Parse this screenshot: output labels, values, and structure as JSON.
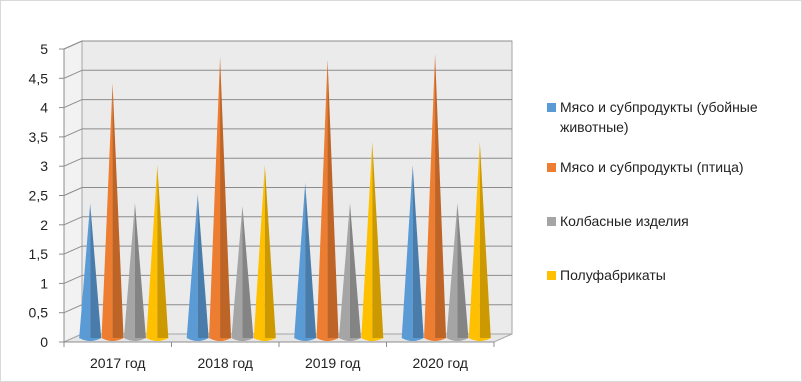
{
  "chart_data": {
    "type": "bar",
    "bar_shape": "cone",
    "categories": [
      "2017 год",
      "2018 год",
      "2019 год",
      "2020 год"
    ],
    "series": [
      {
        "name": "Мясо и субпродукты (убойные животные)",
        "values": [
          2.3,
          2.45,
          2.65,
          2.95
        ],
        "color": "#5b9bd5"
      },
      {
        "name": "Мясо и субпродукты (птица)",
        "values": [
          4.35,
          4.8,
          4.75,
          4.85
        ],
        "color": "#ed7d31"
      },
      {
        "name": "Колбасные изделия",
        "values": [
          2.3,
          2.25,
          2.3,
          2.3
        ],
        "color": "#a5a5a5"
      },
      {
        "name": "Полуфабрикаты",
        "values": [
          2.95,
          2.95,
          3.35,
          3.35
        ],
        "color": "#ffc000"
      }
    ],
    "y_ticks": [
      "0",
      "0,5",
      "1",
      "1,5",
      "2",
      "2,5",
      "3",
      "3,5",
      "4",
      "4,5",
      "5"
    ],
    "ylim": [
      0,
      5
    ],
    "grid": true,
    "legend_position": "right",
    "title": "",
    "xlabel": "",
    "ylabel": ""
  }
}
